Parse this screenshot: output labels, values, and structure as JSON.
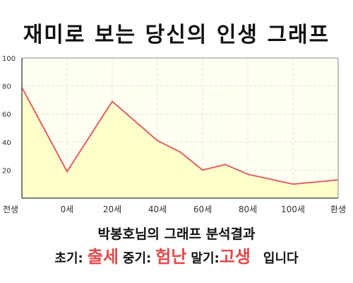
{
  "title": "재미로 보는 당신의 인생 그래프",
  "caption": "박봉호님의 그래프 분석결과",
  "result": {
    "early_label": "초기:",
    "early_value": "출세",
    "middle_label": "중기:",
    "middle_value": "험난",
    "late_label": "말기:",
    "late_value": "고생",
    "suffix": "입니다"
  },
  "chart_data": {
    "type": "area",
    "x_labels": [
      "전생",
      "0세",
      "20세",
      "40세",
      "60세",
      "80세",
      "100세",
      "환생"
    ],
    "points": [
      {
        "x": "전생",
        "y": 79
      },
      {
        "x": "0세",
        "y": 19
      },
      {
        "x": "20세",
        "y": 69
      },
      {
        "x": "40세",
        "y": 41
      },
      {
        "x": "50세",
        "y": 33
      },
      {
        "x": "60세",
        "y": 20
      },
      {
        "x": "70세",
        "y": 24
      },
      {
        "x": "80세",
        "y": 17
      },
      {
        "x": "100세",
        "y": 10
      },
      {
        "x": "환생",
        "y": 13
      }
    ],
    "y_ticks": [
      20,
      40,
      60,
      80,
      100
    ],
    "ylim": [
      0,
      100
    ],
    "grid": true,
    "colors": {
      "fill": "#ffffcc",
      "line": "#e06262",
      "grid": "#e3e3d3",
      "axis": "#888888"
    }
  }
}
